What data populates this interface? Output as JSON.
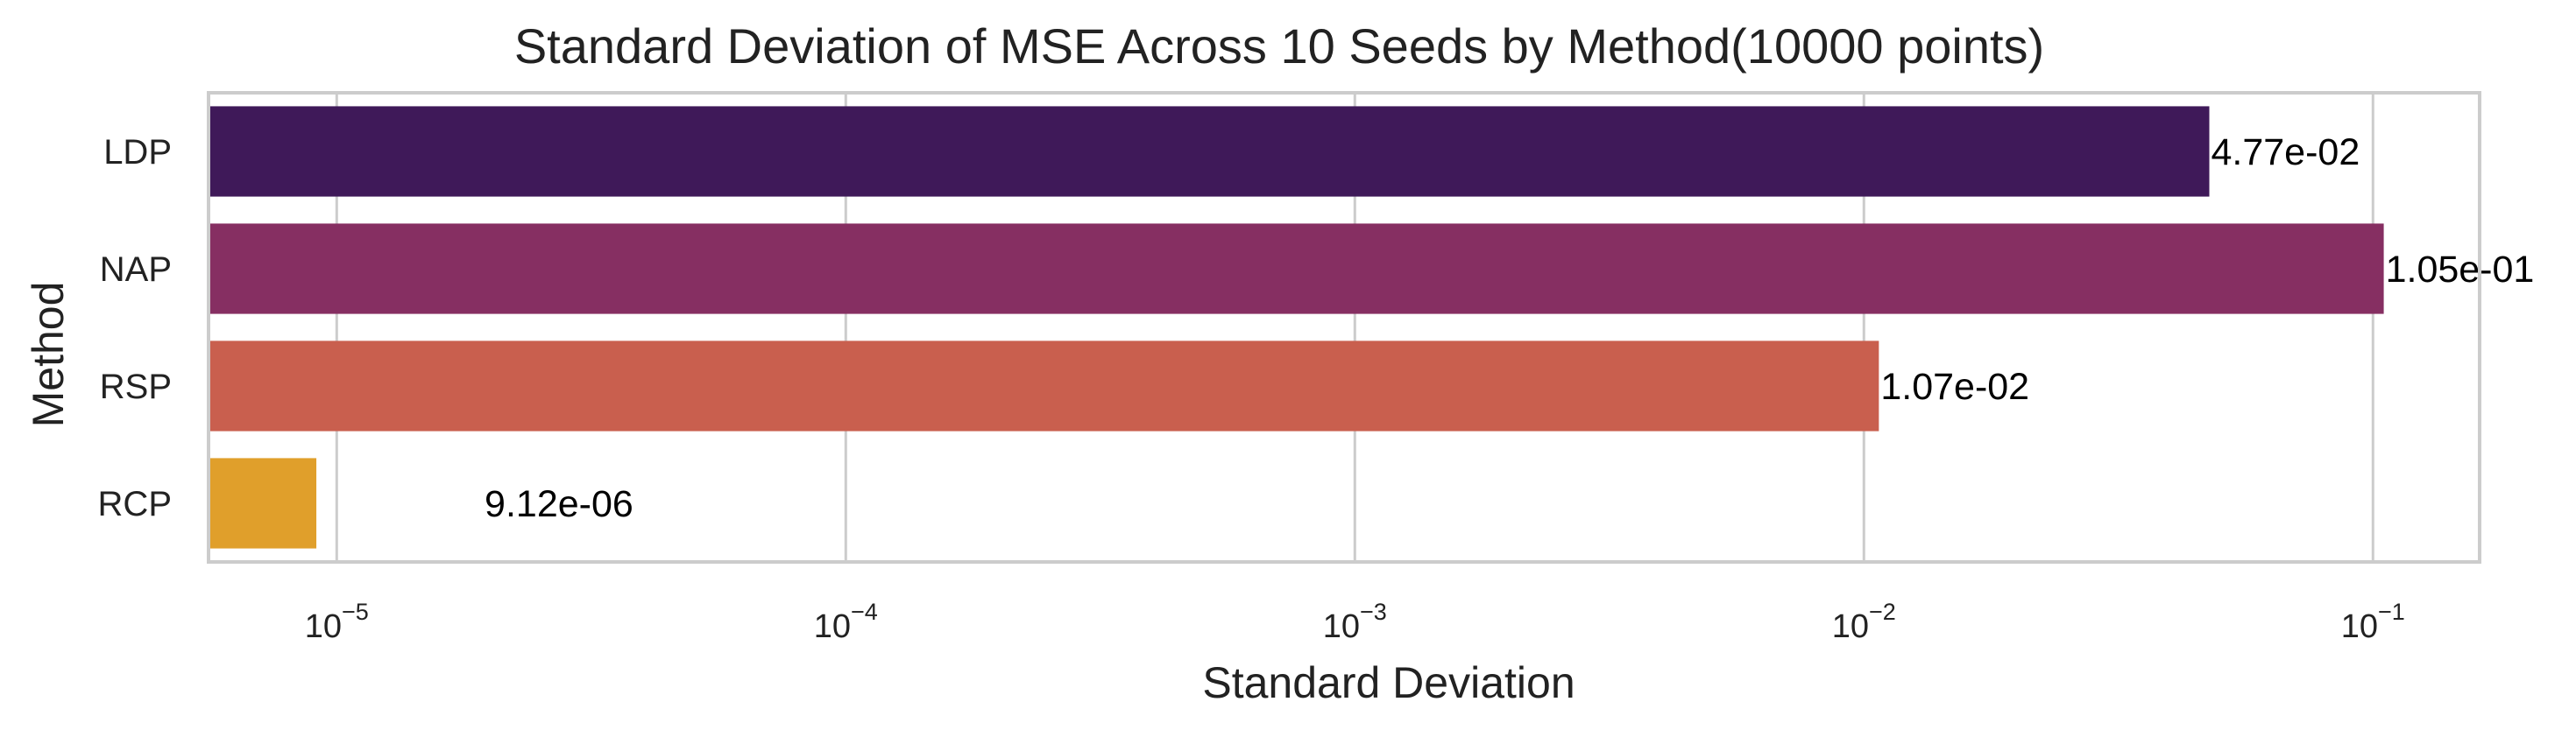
{
  "chart_data": {
    "type": "bar",
    "orientation": "horizontal",
    "title": "Standard Deviation of MSE Across 10 Seeds by Method(10000 points)",
    "xlabel": "Standard Deviation",
    "ylabel": "Method",
    "x_scale": "log",
    "xlim": [
      5.6e-06,
      0.162
    ],
    "grid": true,
    "categories": [
      "LDP",
      "NAP",
      "RSP",
      "RCP"
    ],
    "values": [
      0.0477,
      0.105,
      0.0107,
      9.12e-06
    ],
    "value_labels": [
      "4.77e-02",
      "1.05e-01",
      "1.07e-02",
      "9.12e-06"
    ],
    "colors": [
      "#3f1959",
      "#862f62",
      "#c95f4e",
      "#e09f2b"
    ],
    "x_ticks": [
      {
        "value": 1e-05,
        "base": "10",
        "exp": "−5"
      },
      {
        "value": 0.0001,
        "base": "10",
        "exp": "−4"
      },
      {
        "value": 0.001,
        "base": "10",
        "exp": "−3"
      },
      {
        "value": 0.01,
        "base": "10",
        "exp": "−2"
      },
      {
        "value": 0.1,
        "base": "10",
        "exp": "−1"
      }
    ]
  }
}
